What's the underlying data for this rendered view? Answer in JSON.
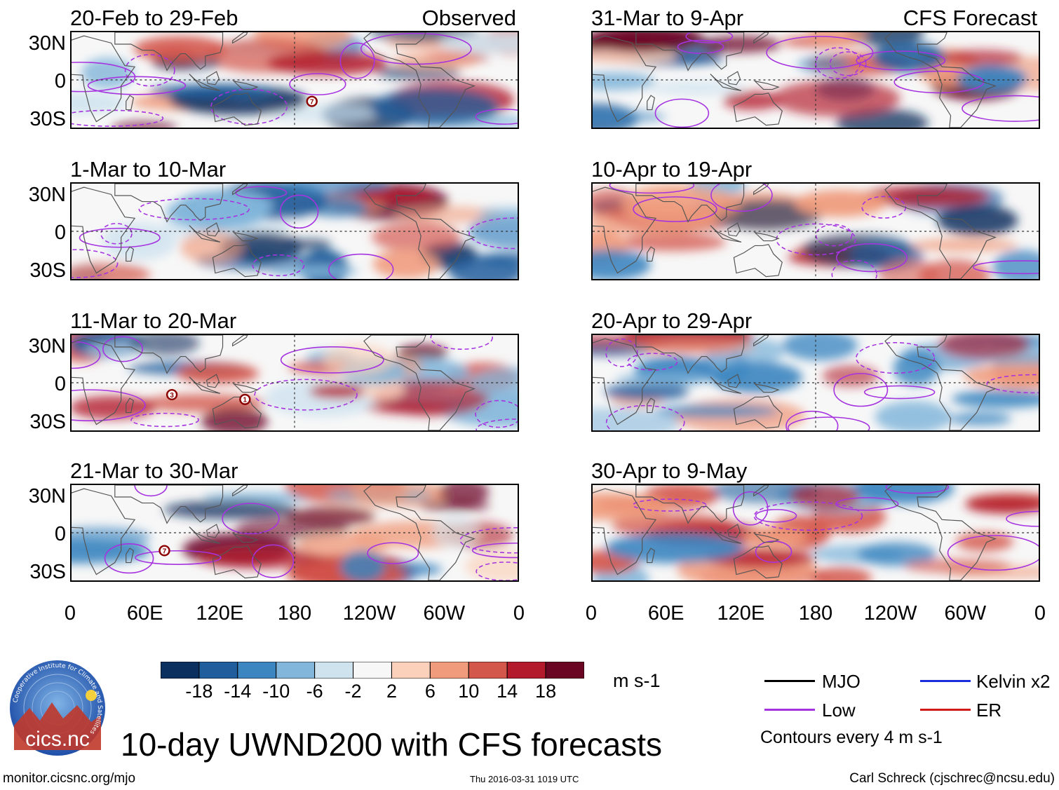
{
  "observed_label": "Observed",
  "forecast_label": "CFS Forecast",
  "lat_labels": [
    "30N",
    "0",
    "30S"
  ],
  "lon_labels": [
    "0",
    "60E",
    "120E",
    "180",
    "120W",
    "60W",
    "0"
  ],
  "observed_panels": [
    {
      "title": "20-Feb to 29-Feb",
      "markers": [
        {
          "symbol": "7",
          "lon": 194,
          "lat": -18
        }
      ]
    },
    {
      "title": "1-Mar to 10-Mar",
      "markers": []
    },
    {
      "title": "11-Mar to 20-Mar",
      "markers": [
        {
          "symbol": "3",
          "lon": 81,
          "lat": -10
        },
        {
          "symbol": "1",
          "lon": 140,
          "lat": -14
        }
      ]
    },
    {
      "title": "21-Mar to 30-Mar",
      "markers": [
        {
          "symbol": "7",
          "lon": 75,
          "lat": -15
        }
      ]
    }
  ],
  "forecast_panels": [
    {
      "title": "31-Mar to 9-Apr"
    },
    {
      "title": "10-Apr to 19-Apr"
    },
    {
      "title": "20-Apr to 29-Apr"
    },
    {
      "title": "30-Apr to 9-May"
    }
  ],
  "colorbar": {
    "tick_labels": [
      "-18",
      "-14",
      "-10",
      "-6",
      "-2",
      "2",
      "6",
      "10",
      "14",
      "18"
    ],
    "colors": [
      "#0b2f5e",
      "#1f5d9c",
      "#3b85c0",
      "#82b6da",
      "#cfe3ef",
      "#f7f7f7",
      "#fbd1bb",
      "#f09b7c",
      "#d4574c",
      "#b31b2c",
      "#6a0624"
    ],
    "units": "m s-1"
  },
  "legend": {
    "items": [
      {
        "label": "MJO",
        "color": "#000000"
      },
      {
        "label": "Kelvin x2",
        "color": "#1a2edc"
      },
      {
        "label": "Low",
        "color": "#a633e0"
      },
      {
        "label": "ER",
        "color": "#d11a1a"
      }
    ],
    "note": "Contours every 4 m s-1"
  },
  "logo_text": "cics.nc",
  "logo_ring_text": "Cooperative Institute for Climate and Satellites",
  "main_title": "10-day UWND200 with CFS forecasts",
  "footer": {
    "url": "monitor.cicsnc.org/mjo",
    "timestamp": "Thu 2016-03-31 1019 UTC",
    "author": "Carl Schreck (cjschrec@ncsu.edu)"
  }
}
